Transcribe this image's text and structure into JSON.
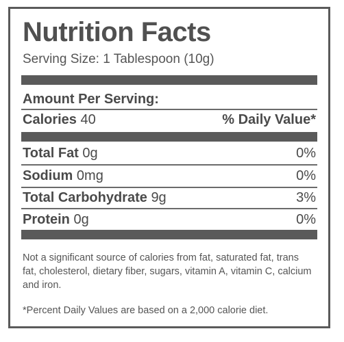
{
  "title": "Nutrition Facts",
  "serving_size": "Serving Size: 1 Tablespoon (10g)",
  "amount_per_serving": "Amount Per Serving:",
  "calories": {
    "label": "Calories",
    "value": "40",
    "daily_value_header": "% Daily Value*"
  },
  "nutrients": [
    {
      "name": "Total Fat",
      "amount": "0g",
      "percent": "0%"
    },
    {
      "name": "Sodium",
      "amount": "0mg",
      "percent": "0%"
    },
    {
      "name": "Total Carbohydrate",
      "amount": "9g",
      "percent": "3%"
    },
    {
      "name": "Protein",
      "amount": "0g",
      "percent": "0%"
    }
  ],
  "footnote_source": "Not a significant source of calories from fat, saturated fat, trans fat, cholesterol, dietary fiber, sugars, vitamin A, vitamin C, calcium and iron.",
  "footnote_daily": "*Percent Daily Values are based on a 2,000 calorie diet.",
  "colors": {
    "border": "#5a5a5a",
    "text": "#4a4a4a"
  }
}
